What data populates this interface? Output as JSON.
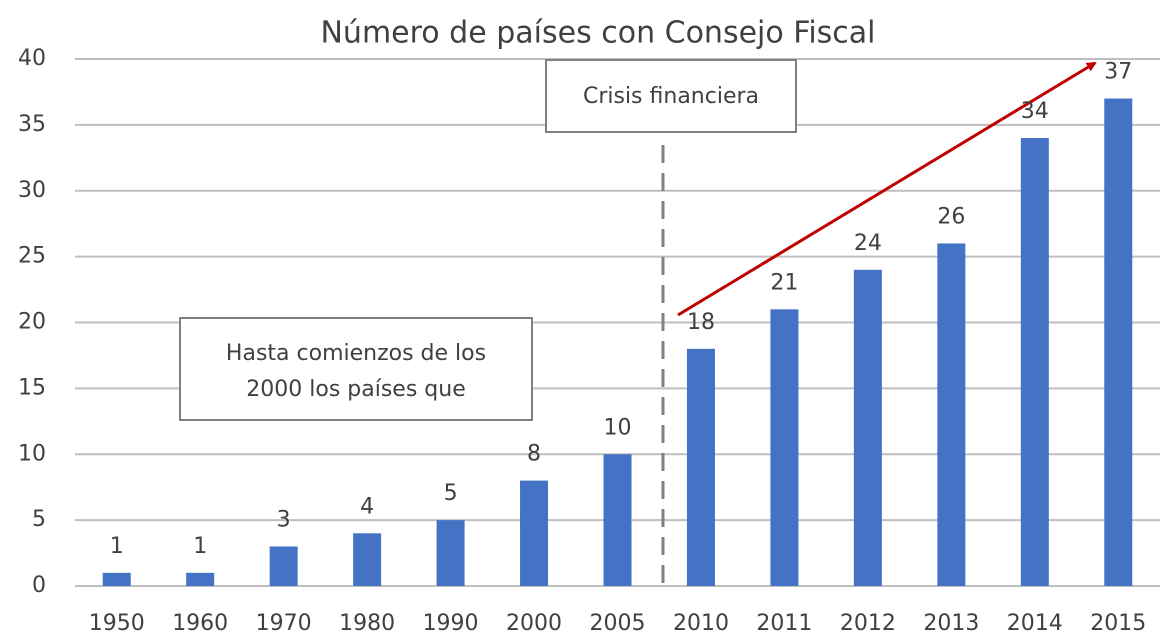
{
  "chart_data": {
    "type": "bar",
    "title": "Número de países con Consejo Fiscal",
    "categories": [
      "1950",
      "1960",
      "1970",
      "1980",
      "1990",
      "2000",
      "2005",
      "2010",
      "2011",
      "2012",
      "2013",
      "2014",
      "2015"
    ],
    "values": [
      1,
      1,
      3,
      4,
      5,
      8,
      10,
      18,
      21,
      24,
      26,
      34,
      37
    ],
    "color": "#4472c4",
    "ylim": [
      0,
      40
    ],
    "yticks": [
      0,
      5,
      10,
      15,
      20,
      25,
      30,
      35,
      40
    ],
    "grid": true,
    "annotations": [
      {
        "text": "Crisis financiera"
      },
      {
        "lines": [
          "Hasta comienzos de los",
          "2000 los países que"
        ]
      }
    ]
  }
}
